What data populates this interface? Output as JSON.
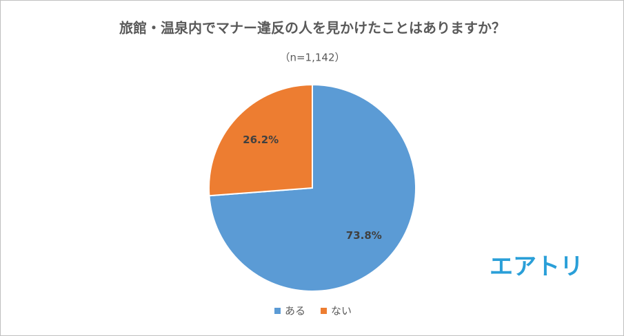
{
  "chart_data": {
    "type": "pie",
    "title": "旅館・温泉内でマナー違反の人を見かけたことはありますか？",
    "subtitle": "（n=1,142）",
    "categories": [
      "ある",
      "ない"
    ],
    "values": [
      73.8,
      26.2
    ],
    "value_labels": [
      "73.8%",
      "26.2%"
    ],
    "colors": [
      "#5b9bd5",
      "#ed7d31"
    ],
    "legend": "bottom",
    "annotation": "エアトリ"
  }
}
